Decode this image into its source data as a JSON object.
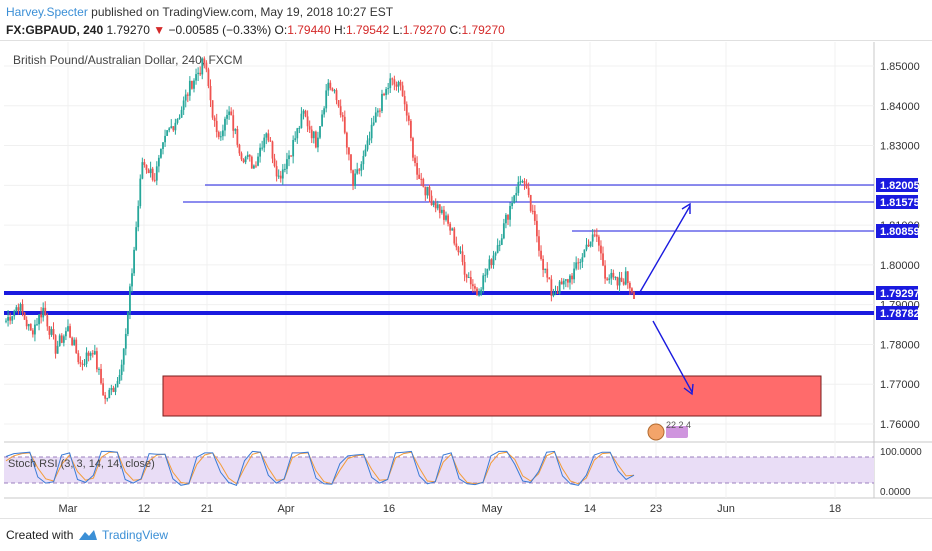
{
  "header": {
    "author": "Harvey.Specter",
    "published": "published on TradingView.com, May 19, 2018 10:27 EST",
    "symbol": "FX:GBPAUD, 240",
    "last": "1.79270",
    "arrow": "▼",
    "change": "−0.00585 (−0.33%)",
    "o_label": "O:",
    "o_val": "1.79440",
    "h_label": "H:",
    "h_val": "1.79542",
    "l_label": "L:",
    "l_val": "1.79270",
    "c_label": "C:",
    "c_val": "1.79270"
  },
  "chart_title": "British Pound/Australian Dollar, 240, FXCM",
  "stoch_label": "Stoch RSI (3, 3, 14, 14, close)",
  "footer": {
    "created": "Created with",
    "brand": "TradingView"
  },
  "colors": {
    "up": "#26a69a",
    "down": "#ef5350",
    "line": "#1a1adf",
    "zone": "#ff6b6b",
    "stoch_bg": "#e9ddf6"
  },
  "chart_data": {
    "type": "candlestick",
    "title": "British Pound/Australian Dollar, 240, FXCM",
    "price_axis": {
      "ticks": [
        "1.85000",
        "1.84000",
        "1.83000",
        "1.82000",
        "1.81000",
        "1.80000",
        "1.79000",
        "1.78000",
        "1.77000",
        "1.76000"
      ]
    },
    "x_ticks": [
      "Mar",
      "12",
      "21",
      "Apr",
      "16",
      "May",
      "14",
      "23",
      "Jun",
      "18"
    ],
    "price_labels": [
      "1.82005",
      "1.81575",
      "1.80859",
      "1.79297",
      "1.78782"
    ],
    "waypoints": [
      [
        0,
        1.786
      ],
      [
        6,
        1.79
      ],
      [
        12,
        1.783
      ],
      [
        18,
        1.789
      ],
      [
        24,
        1.779
      ],
      [
        30,
        1.784
      ],
      [
        36,
        1.775
      ],
      [
        42,
        1.779
      ],
      [
        48,
        1.766
      ],
      [
        54,
        1.771
      ],
      [
        58,
        1.782
      ],
      [
        62,
        1.804
      ],
      [
        66,
        1.826
      ],
      [
        72,
        1.822
      ],
      [
        78,
        1.833
      ],
      [
        84,
        1.838
      ],
      [
        90,
        1.846
      ],
      [
        96,
        1.851
      ],
      [
        102,
        1.832
      ],
      [
        108,
        1.838
      ],
      [
        114,
        1.828
      ],
      [
        120,
        1.825
      ],
      [
        126,
        1.834
      ],
      [
        132,
        1.822
      ],
      [
        138,
        1.829
      ],
      [
        144,
        1.838
      ],
      [
        150,
        1.831
      ],
      [
        156,
        1.846
      ],
      [
        162,
        1.839
      ],
      [
        168,
        1.82
      ],
      [
        174,
        1.828
      ],
      [
        180,
        1.839
      ],
      [
        186,
        1.846
      ],
      [
        192,
        1.844
      ],
      [
        198,
        1.825
      ],
      [
        204,
        1.818
      ],
      [
        210,
        1.814
      ],
      [
        216,
        1.808
      ],
      [
        222,
        1.799
      ],
      [
        228,
        1.793
      ],
      [
        234,
        1.8
      ],
      [
        240,
        1.808
      ],
      [
        246,
        1.818
      ],
      [
        250,
        1.822
      ],
      [
        256,
        1.81
      ],
      [
        260,
        1.8
      ],
      [
        264,
        1.793
      ],
      [
        270,
        1.795
      ],
      [
        276,
        1.799
      ],
      [
        282,
        1.806
      ],
      [
        286,
        1.807
      ],
      [
        290,
        1.798
      ],
      [
        296,
        1.795
      ],
      [
        300,
        1.797
      ],
      [
        304,
        1.793
      ]
    ],
    "stoch": {
      "range": [
        0,
        100
      ],
      "ticks": [
        "100.0000",
        "0.0000"
      ],
      "k": [
        82,
        90,
        92,
        94,
        25,
        8,
        12,
        86,
        92,
        18,
        10,
        30,
        96,
        96,
        94,
        18,
        8,
        20,
        90,
        88,
        88,
        20,
        2,
        6,
        80,
        92,
        92,
        38,
        10,
        2,
        70,
        96,
        94,
        30,
        8,
        20,
        92,
        92,
        94,
        22,
        6,
        5,
        62,
        84,
        86,
        88,
        24,
        8,
        18,
        92,
        94,
        96,
        28,
        6,
        12,
        86,
        92,
        20,
        6,
        4,
        10,
        84,
        96,
        96,
        60,
        14,
        10,
        40,
        94,
        96,
        28,
        6,
        2,
        30,
        86,
        94,
        94,
        42,
        18,
        30
      ],
      "d": [
        70,
        84,
        90,
        92,
        50,
        20,
        14,
        60,
        86,
        40,
        16,
        22,
        80,
        94,
        94,
        40,
        16,
        18,
        70,
        86,
        88,
        38,
        10,
        6,
        60,
        86,
        92,
        60,
        22,
        6,
        50,
        88,
        94,
        50,
        16,
        18,
        78,
        90,
        92,
        42,
        12,
        6,
        44,
        76,
        84,
        86,
        46,
        16,
        18,
        78,
        90,
        94,
        50,
        14,
        12,
        66,
        88,
        36,
        10,
        6,
        10,
        64,
        90,
        94,
        74,
        28,
        14,
        34,
        84,
        94,
        48,
        14,
        6,
        22,
        72,
        90,
        92,
        58,
        28,
        30
      ]
    }
  }
}
